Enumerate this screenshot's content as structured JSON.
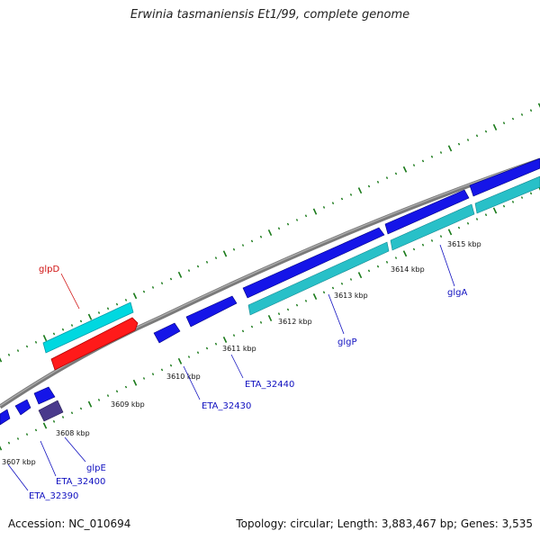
{
  "title": "Erwinia tasmaniensis Et1/99, complete genome",
  "footer": {
    "accession": "Accession: NC_010694",
    "topology": "Topology: circular; Length: 3,883,467 bp; Genes: 3,535"
  },
  "colors": {
    "backbone": "#808080",
    "tick": "#1a7a1a",
    "cds_forward": "#1010e0",
    "cds_forward_alt": "#4a3a8c",
    "gene_forward": "#00c8d0",
    "gene_highlight": "#ff1010",
    "label_blue": "#1010c0",
    "label_red": "#d01010"
  },
  "ticks": [
    {
      "label": "3607 kbp"
    },
    {
      "label": "3608 kbp"
    },
    {
      "label": "3609 kbp"
    },
    {
      "label": "3610 kbp"
    },
    {
      "label": "3611 kbp"
    },
    {
      "label": "3612 kbp"
    },
    {
      "label": "3613 kbp"
    },
    {
      "label": "3614 kbp"
    },
    {
      "label": "3615 kbp"
    }
  ],
  "genes": [
    {
      "label": "glpD",
      "color": "red"
    },
    {
      "label": "glgA",
      "color": "blue"
    },
    {
      "label": "glgP",
      "color": "blue"
    },
    {
      "label": "ETA_32440",
      "color": "blue"
    },
    {
      "label": "ETA_32430",
      "color": "blue"
    },
    {
      "label": "glpE",
      "color": "blue"
    },
    {
      "label": "ETA_32400",
      "color": "blue"
    },
    {
      "label": "ETA_32390",
      "color": "blue"
    }
  ]
}
